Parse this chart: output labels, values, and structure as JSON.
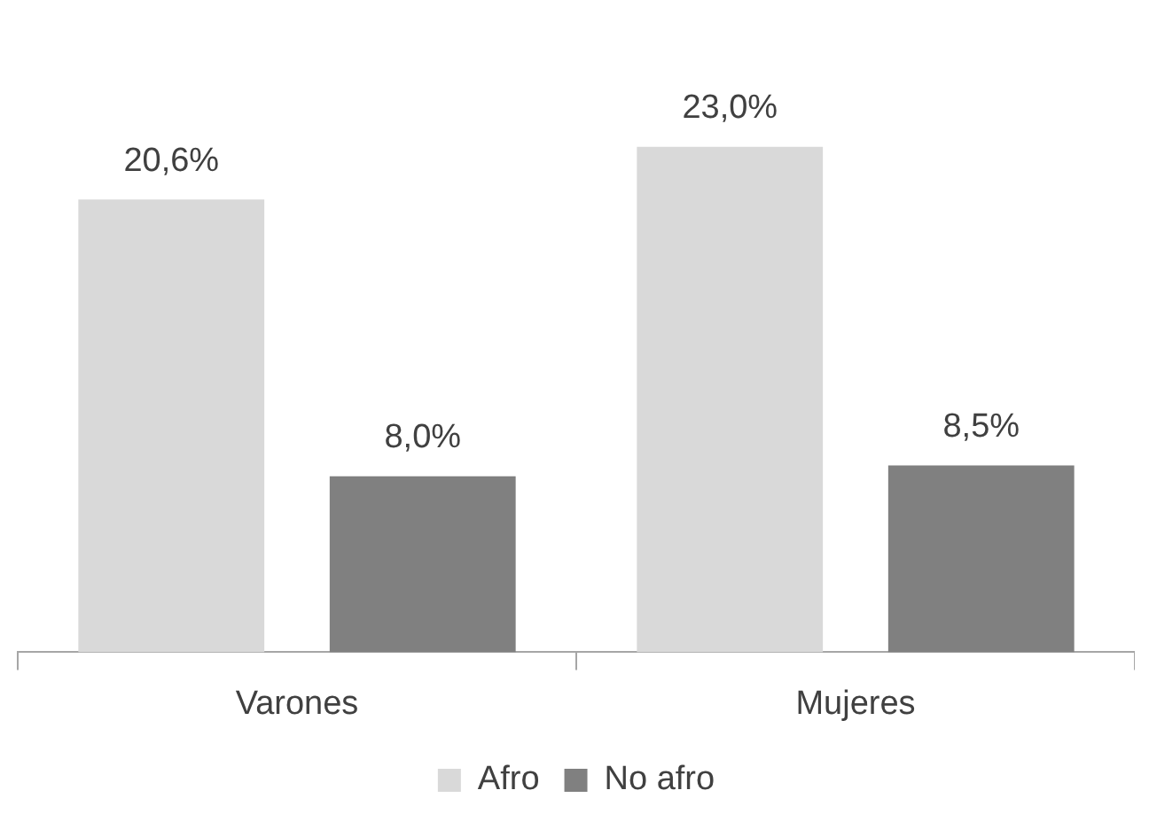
{
  "chart_data": {
    "type": "bar",
    "categories": [
      "Varones",
      "Mujeres"
    ],
    "series": [
      {
        "name": "Afro",
        "color": "#d9d9d9",
        "values": [
          20.6,
          23.0
        ],
        "value_labels": [
          "20,6%",
          "23,0%"
        ]
      },
      {
        "name": "No afro",
        "color": "#808080",
        "values": [
          8.0,
          8.5
        ],
        "value_labels": [
          "8,0%",
          "8,5%"
        ]
      }
    ],
    "grid": false,
    "legend": "bottom"
  }
}
